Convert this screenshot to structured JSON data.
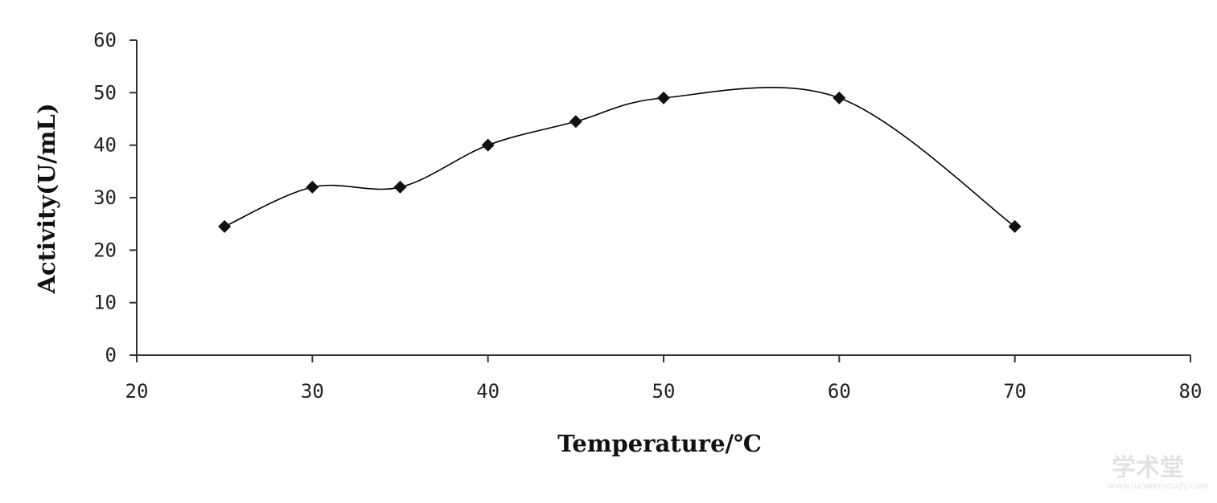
{
  "chart_data": {
    "type": "line",
    "title": "",
    "xlabel": "Temperature/℃",
    "ylabel": "Activity(U/mL)",
    "xlim": [
      20,
      80
    ],
    "ylim": [
      0,
      60
    ],
    "x_ticks": [
      20,
      30,
      40,
      50,
      60,
      70,
      80
    ],
    "y_ticks": [
      0,
      10,
      20,
      30,
      40,
      50,
      60
    ],
    "x_tick_labels": [
      "20",
      "30",
      "40",
      "50",
      "60",
      "70",
      "80"
    ],
    "y_tick_labels": [
      "0",
      "10",
      "20",
      "30",
      "40",
      "50",
      "60"
    ],
    "grid": false,
    "legend": "none",
    "smooth": true,
    "marker": "diamond",
    "line_color": "#000000",
    "series": [
      {
        "x": [
          25,
          30,
          35,
          40,
          45,
          50,
          60,
          70
        ],
        "values": [
          24.5,
          32,
          32,
          40,
          44.5,
          49,
          49,
          24.5
        ]
      }
    ]
  },
  "watermark": {
    "main": "学术堂",
    "sub": "www.lunwenstudy.com"
  }
}
